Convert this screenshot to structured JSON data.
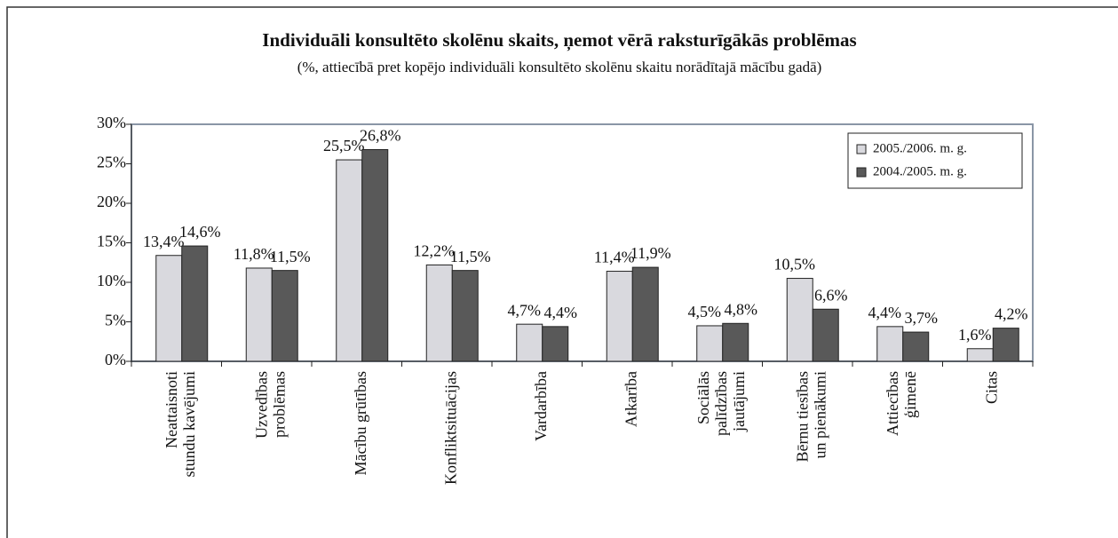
{
  "chart_data": {
    "type": "bar",
    "title": "Individuāli konsultēto skolēnu skaits, ņemot vērā raksturīgākās problēmas",
    "subtitle": "(%, attiecībā pret kopējo individuāli konsultēto skolēnu skaitu norādītajā mācību gadā)",
    "categories": [
      "Neattaisnoti\nstundu kavējumi",
      "Uzvedības\nproblēmas",
      "Mācību grūtības",
      "Konfliktsituācijas",
      "Vardarbība",
      "Atkarība",
      "Sociālās\npalīdzības\njautājumi",
      "Bērnu tiesības\nun pienākumi",
      "Attiecības\nģimenē",
      "Citas"
    ],
    "series": [
      {
        "name": "2005./2006. m. g.",
        "color": "#d9d9de",
        "values": [
          13.4,
          11.8,
          25.5,
          12.2,
          4.7,
          11.4,
          4.5,
          10.5,
          4.4,
          1.6
        ],
        "value_labels": [
          "13,4%",
          "11,8%",
          "25,5%",
          "12,2%",
          "4,7%",
          "11,4%",
          "4,5%",
          "10,5%",
          "4,4%",
          "1,6%"
        ]
      },
      {
        "name": "2004./2005. m. g.",
        "color": "#595959",
        "values": [
          14.6,
          11.5,
          26.8,
          11.5,
          4.4,
          11.9,
          4.8,
          6.6,
          3.7,
          4.2
        ],
        "value_labels": [
          "14,6%",
          "11,5%",
          "26,8%",
          "11,5%",
          "4,4%",
          "11,9%",
          "4,8%",
          "6,6%",
          "3,7%",
          "4,2%"
        ]
      }
    ],
    "ylim": [
      0,
      30
    ],
    "yticks": [
      {
        "value": 0,
        "label": "0%"
      },
      {
        "value": 5,
        "label": "5%"
      },
      {
        "value": 10,
        "label": "10%"
      },
      {
        "value": 15,
        "label": "15%"
      },
      {
        "value": 20,
        "label": "20%"
      },
      {
        "value": 25,
        "label": "25%"
      },
      {
        "value": 30,
        "label": "30%"
      }
    ],
    "legend": "top-right"
  }
}
